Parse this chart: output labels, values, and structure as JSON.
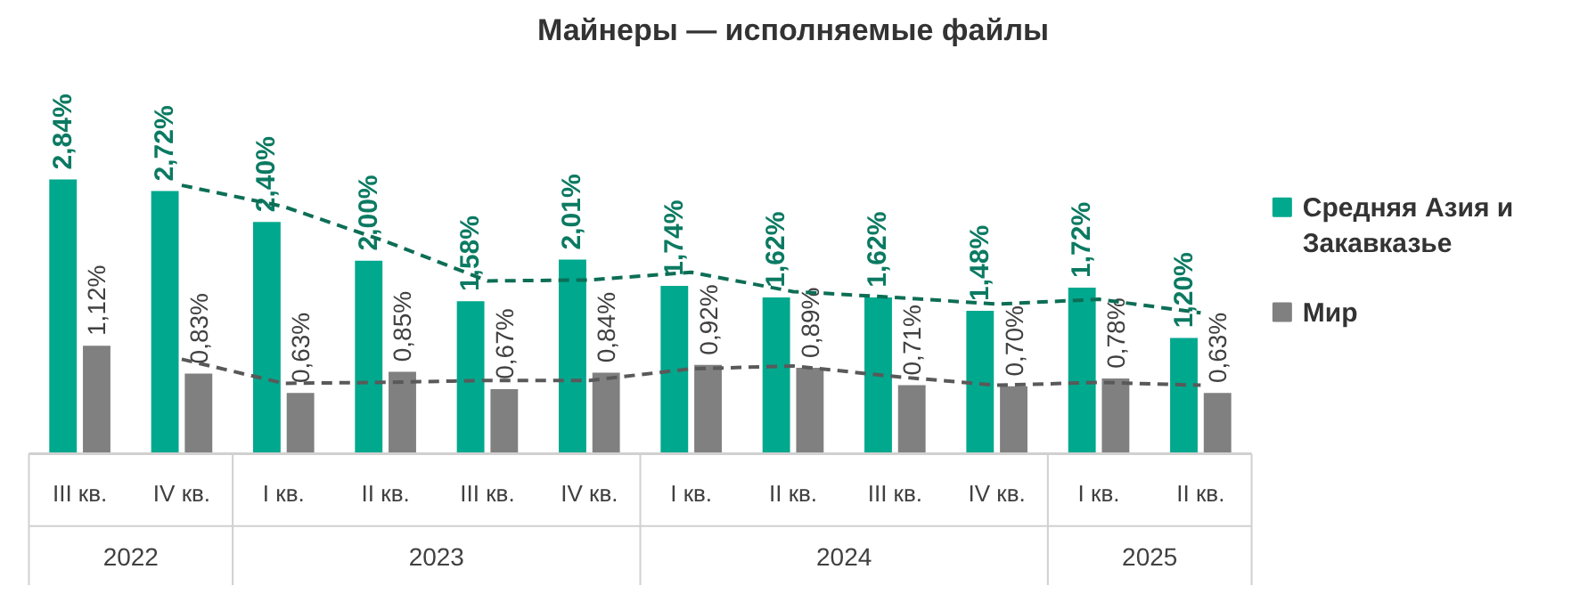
{
  "chart_data": {
    "type": "bar",
    "title": "Майнеры — исполняемые файлы",
    "categories": [
      "III кв.",
      "IV кв.",
      "I кв.",
      "II кв.",
      "III кв.",
      "IV кв.",
      "I кв.",
      "II кв.",
      "III кв.",
      "IV кв.",
      "I кв.",
      "II кв."
    ],
    "annotations": [
      "2022",
      "2023",
      "2024",
      "2025"
    ],
    "series": [
      {
        "name": "Средняя Азия и Закавказье",
        "color": "#00a88e",
        "values": [
          2.84,
          2.72,
          2.4,
          2.0,
          1.58,
          2.01,
          1.74,
          1.62,
          1.62,
          1.48,
          1.72,
          1.2
        ],
        "value_labels": [
          "2,84%",
          "2,72%",
          "2,40%",
          "2,00%",
          "1,58%",
          "2,01%",
          "1,74%",
          "1,62%",
          "1,62%",
          "1,48%",
          "1,72%",
          "1,20%"
        ]
      },
      {
        "name": "Мир",
        "color": "#808080",
        "values": [
          1.12,
          0.83,
          0.63,
          0.85,
          0.67,
          0.84,
          0.92,
          0.89,
          0.71,
          0.7,
          0.78,
          0.63
        ],
        "value_labels": [
          "1,12%",
          "0,83%",
          "0,63%",
          "0,85%",
          "0,67%",
          "0,84%",
          "0,92%",
          "0,89%",
          "0,71%",
          "0,70%",
          "0,78%",
          "0,63%"
        ]
      },
      {
        "type": "line",
        "color": "#0d6e55",
        "line_style": "dashed",
        "values": [
          null,
          2.78,
          2.56,
          2.2,
          1.79,
          1.8,
          1.88,
          1.68,
          1.62,
          1.55,
          1.6,
          1.46
        ]
      },
      {
        "type": "line",
        "color": "#595959",
        "line_style": "dashed",
        "values": [
          null,
          0.98,
          0.73,
          0.74,
          0.76,
          0.76,
          0.88,
          0.91,
          0.8,
          0.71,
          0.74,
          0.71
        ]
      }
    ],
    "legend": "right",
    "grid": false
  }
}
